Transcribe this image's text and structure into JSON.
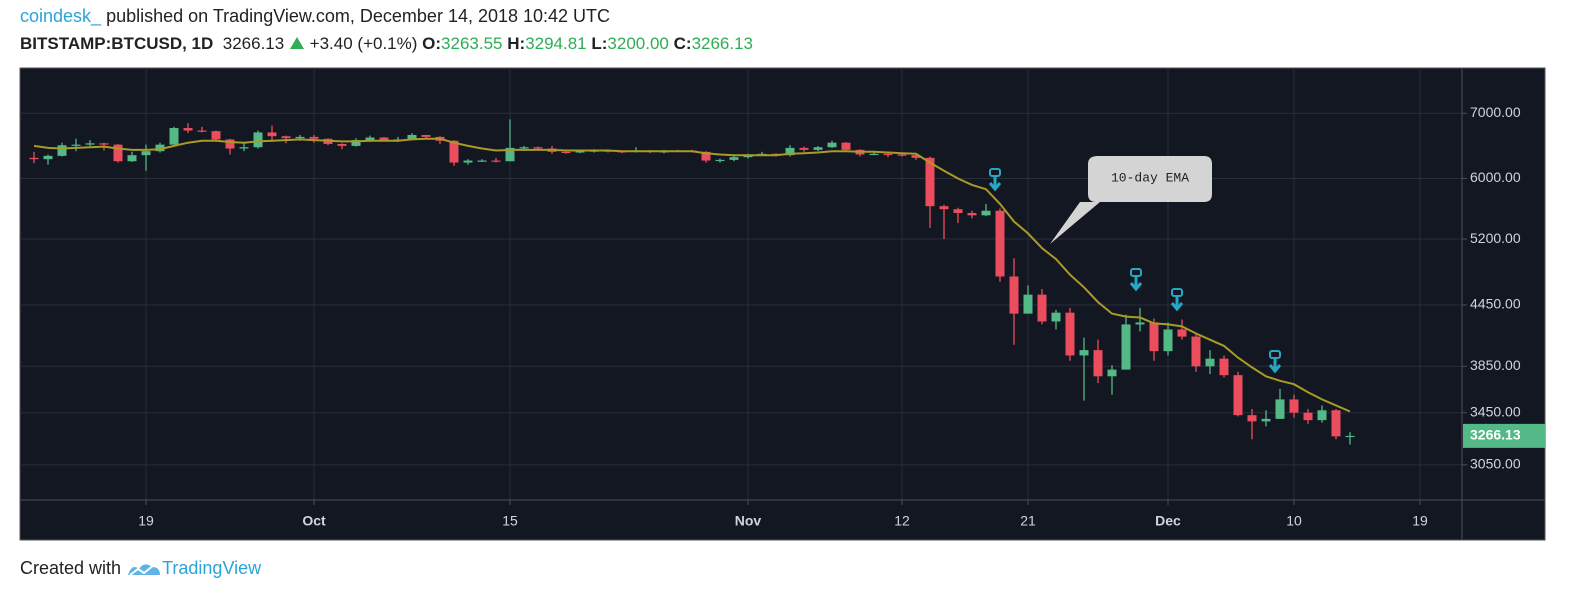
{
  "header": {
    "author": "coindesk_",
    "published": "published on TradingView.com, December 14, 2018 10:42 UTC",
    "symbol": "BITSTAMP:BTCUSD, 1D",
    "last": "3266.13",
    "change": "+3.40 (+0.1%)",
    "open_label": "O:",
    "open": "3263.55",
    "high_label": "H:",
    "high": "3294.81",
    "low_label": "L:",
    "low": "3200.00",
    "close_label": "C:",
    "close": "3266.13"
  },
  "footer": {
    "text": "Created with",
    "brand": "TradingView"
  },
  "chart_data": {
    "type": "candlestick",
    "log_scale": true,
    "grid": true,
    "annotation": "10-day EMA",
    "up_color": "#53b987",
    "down_color": "#eb4d5c",
    "x": [
      "2018-09-11",
      "2018-09-12",
      "2018-09-13",
      "2018-09-14",
      "2018-09-15",
      "2018-09-16",
      "2018-09-17",
      "2018-09-18",
      "2018-09-19",
      "2018-09-20",
      "2018-09-21",
      "2018-09-22",
      "2018-09-23",
      "2018-09-24",
      "2018-09-25",
      "2018-09-26",
      "2018-09-27",
      "2018-09-28",
      "2018-09-29",
      "2018-09-30",
      "2018-10-01",
      "2018-10-02",
      "2018-10-03",
      "2018-10-04",
      "2018-10-05",
      "2018-10-06",
      "2018-10-07",
      "2018-10-08",
      "2018-10-09",
      "2018-10-10",
      "2018-10-11",
      "2018-10-12",
      "2018-10-13",
      "2018-10-14",
      "2018-10-15",
      "2018-10-16",
      "2018-10-17",
      "2018-10-18",
      "2018-10-19",
      "2018-10-20",
      "2018-10-21",
      "2018-10-22",
      "2018-10-23",
      "2018-10-24",
      "2018-10-25",
      "2018-10-26",
      "2018-10-27",
      "2018-10-28",
      "2018-10-29",
      "2018-10-30",
      "2018-10-31",
      "2018-11-01",
      "2018-11-02",
      "2018-11-03",
      "2018-11-04",
      "2018-11-05",
      "2018-11-06",
      "2018-11-07",
      "2018-11-08",
      "2018-11-09",
      "2018-11-10",
      "2018-11-11",
      "2018-11-12",
      "2018-11-13",
      "2018-11-14",
      "2018-11-15",
      "2018-11-16",
      "2018-11-17",
      "2018-11-18",
      "2018-11-19",
      "2018-11-20",
      "2018-11-21",
      "2018-11-22",
      "2018-11-23",
      "2018-11-24",
      "2018-11-25",
      "2018-11-26",
      "2018-11-27",
      "2018-11-28",
      "2018-11-29",
      "2018-11-30",
      "2018-12-01",
      "2018-12-02",
      "2018-12-03",
      "2018-12-04",
      "2018-12-05",
      "2018-12-06",
      "2018-12-07",
      "2018-12-08",
      "2018-12-09",
      "2018-12-10",
      "2018-12-11",
      "2018-12-12",
      "2018-12-13",
      "2018-12-14"
    ],
    "open": [
      6300,
      6280,
      6330,
      6490,
      6500,
      6520,
      6500,
      6250,
      6340,
      6400,
      6500,
      6760,
      6720,
      6710,
      6580,
      6440,
      6460,
      6690,
      6630,
      6600,
      6620,
      6590,
      6510,
      6480,
      6570,
      6610,
      6560,
      6580,
      6650,
      6620,
      6560,
      6230,
      6260,
      6260,
      6250,
      6450,
      6460,
      6440,
      6390,
      6380,
      6400,
      6410,
      6400,
      6390,
      6410,
      6390,
      6400,
      6410,
      6390,
      6260,
      6270,
      6310,
      6340,
      6360,
      6340,
      6450,
      6420,
      6460,
      6530,
      6420,
      6350,
      6360,
      6350,
      6340,
      6300,
      5620,
      5580,
      5530,
      5500,
      5560,
      4760,
      4360,
      4560,
      4280,
      4370,
      3950,
      4000,
      3760,
      3820,
      4250,
      4270,
      3990,
      4200,
      4130,
      3850,
      3920,
      3770,
      3430,
      3380,
      3400,
      3560,
      3450,
      3390,
      3470,
      3263.55
    ],
    "high": [
      6390,
      6350,
      6530,
      6590,
      6570,
      6530,
      6510,
      6390,
      6500,
      6530,
      6780,
      6840,
      6780,
      6720,
      6590,
      6540,
      6720,
      6800,
      6640,
      6650,
      6650,
      6600,
      6520,
      6600,
      6640,
      6620,
      6620,
      6680,
      6650,
      6630,
      6570,
      6280,
      6280,
      6300,
      6900,
      6480,
      6470,
      6480,
      6420,
      6420,
      6430,
      6430,
      6410,
      6460,
      6420,
      6420,
      6420,
      6420,
      6400,
      6290,
      6340,
      6360,
      6390,
      6370,
      6490,
      6470,
      6480,
      6560,
      6540,
      6430,
      6380,
      6380,
      6380,
      6350,
      6320,
      5640,
      5600,
      5560,
      5650,
      5590,
      4970,
      4660,
      4620,
      4400,
      4420,
      4120,
      4100,
      3860,
      4350,
      4420,
      4310,
      4270,
      4300,
      4150,
      4000,
      3950,
      3800,
      3480,
      3470,
      3650,
      3600,
      3480,
      3510,
      3480,
      3294.81
    ],
    "low": [
      6220,
      6200,
      6320,
      6400,
      6480,
      6410,
      6230,
      6240,
      6110,
      6380,
      6500,
      6680,
      6690,
      6560,
      6350,
      6400,
      6440,
      6540,
      6520,
      6560,
      6530,
      6490,
      6430,
      6470,
      6540,
      6550,
      6540,
      6570,
      6580,
      6510,
      6180,
      6200,
      6240,
      6230,
      6250,
      6420,
      6420,
      6360,
      6360,
      6370,
      6380,
      6380,
      6370,
      6380,
      6370,
      6370,
      6390,
      6380,
      6230,
      6230,
      6250,
      6290,
      6330,
      6320,
      6320,
      6390,
      6400,
      6450,
      6400,
      6320,
      6340,
      6310,
      6320,
      6270,
      5340,
      5200,
      5400,
      5460,
      5490,
      4700,
      4050,
      4360,
      4250,
      4200,
      3900,
      3550,
      3700,
      3600,
      3820,
      4180,
      3900,
      3950,
      4100,
      3800,
      3780,
      3750,
      3420,
      3240,
      3340,
      3400,
      3410,
      3360,
      3370,
      3240,
      3200
    ],
    "close": [
      6280,
      6330,
      6490,
      6500,
      6520,
      6500,
      6250,
      6340,
      6400,
      6500,
      6760,
      6720,
      6710,
      6580,
      6440,
      6460,
      6690,
      6630,
      6600,
      6620,
      6590,
      6510,
      6480,
      6570,
      6610,
      6560,
      6580,
      6650,
      6620,
      6560,
      6230,
      6260,
      6260,
      6250,
      6450,
      6460,
      6440,
      6390,
      6380,
      6400,
      6410,
      6400,
      6390,
      6410,
      6390,
      6400,
      6410,
      6390,
      6260,
      6270,
      6310,
      6340,
      6360,
      6340,
      6450,
      6420,
      6460,
      6530,
      6420,
      6350,
      6360,
      6350,
      6340,
      6300,
      5620,
      5580,
      5530,
      5500,
      5560,
      4760,
      4360,
      4560,
      4280,
      4370,
      3950,
      4000,
      3760,
      3820,
      4250,
      4270,
      3990,
      4200,
      4130,
      3850,
      3920,
      3770,
      3430,
      3380,
      3400,
      3560,
      3450,
      3390,
      3470,
      3262.73,
      3266.13
    ],
    "ema": {
      "color": "#a89b26",
      "values": [
        6480,
        6450,
        6440,
        6450,
        6460,
        6470,
        6440,
        6420,
        6420,
        6430,
        6480,
        6530,
        6560,
        6560,
        6540,
        6530,
        6550,
        6560,
        6570,
        6580,
        6570,
        6560,
        6550,
        6550,
        6560,
        6560,
        6560,
        6580,
        6590,
        6590,
        6530,
        6480,
        6440,
        6410,
        6420,
        6420,
        6420,
        6420,
        6410,
        6410,
        6410,
        6410,
        6400,
        6400,
        6400,
        6400,
        6400,
        6400,
        6370,
        6350,
        6340,
        6340,
        6340,
        6340,
        6360,
        6370,
        6380,
        6400,
        6400,
        6390,
        6390,
        6380,
        6370,
        6360,
        6230,
        6110,
        6000,
        5910,
        5850,
        5650,
        5420,
        5270,
        5090,
        4960,
        4780,
        4640,
        4480,
        4360,
        4330,
        4320,
        4260,
        4250,
        4230,
        4160,
        4100,
        4040,
        3930,
        3840,
        3760,
        3720,
        3690,
        3620,
        3560,
        3510,
        3460
      ]
    },
    "xlim": [
      "2018-09-10",
      "2018-12-22"
    ],
    "xticks": [
      {
        "value": "2018-09-19",
        "label": "19"
      },
      {
        "value": "2018-10-01",
        "label": "Oct"
      },
      {
        "value": "2018-10-15",
        "label": "15"
      },
      {
        "value": "2018-11-01",
        "label": "Nov"
      },
      {
        "value": "2018-11-12",
        "label": "12"
      },
      {
        "value": "2018-11-21",
        "label": "21"
      },
      {
        "value": "2018-12-01",
        "label": "Dec"
      },
      {
        "value": "2018-12-10",
        "label": "10"
      },
      {
        "value": "2018-12-19",
        "label": "19"
      }
    ],
    "ylim": [
      2807,
      7790
    ],
    "yticks": [
      {
        "value": 3050,
        "label": "3050.00"
      },
      {
        "value": 3450,
        "label": "3450.00"
      },
      {
        "value": 3850,
        "label": "3850.00"
      },
      {
        "value": 4450,
        "label": "4450.00"
      },
      {
        "value": 5200,
        "label": "5200.00"
      },
      {
        "value": 6000,
        "label": "6000.00"
      },
      {
        "value": 7000,
        "label": "7000.00"
      }
    ]
  }
}
